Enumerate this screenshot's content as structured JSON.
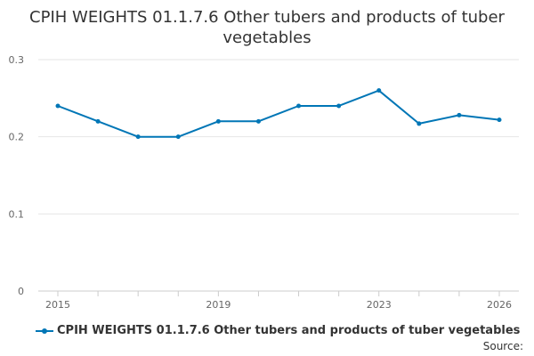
{
  "chart_data": {
    "type": "line",
    "title": "CPIH WEIGHTS 01.1.7.6 Other tubers and products of tuber vegetables",
    "x": [
      2015,
      2016,
      2017,
      2018,
      2019,
      2020,
      2021,
      2022,
      2023,
      2024,
      2025,
      2026
    ],
    "x_tick_labels": [
      "2015",
      "2019",
      "2023",
      "2026"
    ],
    "series": [
      {
        "name": "CPIH WEIGHTS 01.1.7.6 Other tubers and products of tuber vegetables",
        "values": [
          0.24,
          0.22,
          0.2,
          0.2,
          0.22,
          0.22,
          0.24,
          0.24,
          0.26,
          0.217,
          0.228,
          0.222
        ],
        "color": "#0076b6"
      }
    ],
    "y_ticks": [
      "0",
      "0.1",
      "0.2",
      "0.3"
    ],
    "ylim": [
      0,
      0.3
    ],
    "xlabel": "",
    "ylabel": "",
    "grid": true,
    "legend": "bottom-left"
  },
  "source_label": "Source:"
}
